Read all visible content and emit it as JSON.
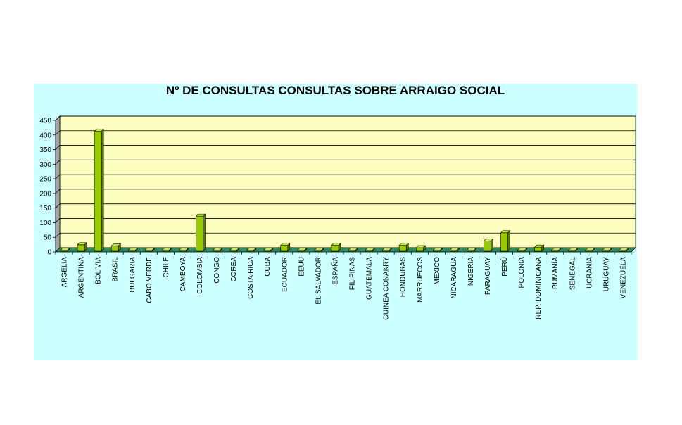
{
  "chart_data": {
    "type": "bar",
    "title": "Nº DE CONSULTAS CONSULTAS SOBRE ARRAIGO SOCIAL",
    "xlabel": "",
    "ylabel": "",
    "ylim": [
      0,
      450
    ],
    "yticks": [
      "0",
      "50",
      "100",
      "150",
      "200",
      "250",
      "300",
      "350",
      "400",
      "450"
    ],
    "grid": true,
    "legend": "none",
    "colors": {
      "background": "#ccffff",
      "plot_back": "#ffffc0",
      "plot_side": "#a6a6a6",
      "floor": "#2e8b57",
      "bar_front": "#99cc00",
      "bar_top": "#c8e64c",
      "bar_side": "#5c7a00"
    },
    "categories": [
      "ARGELIA",
      "ARGENTINA",
      "BOLIVIA",
      "BRASIL",
      "BULGARIA",
      "CABO VERDE",
      "CHILE",
      "CAMBOYA",
      "COLOMBIA",
      "CONGO",
      "COREA",
      "COSTA RICA",
      "CUBA",
      "ECUADOR",
      "EEUU",
      "EL SALVADOR",
      "ESPAÑA",
      "FILIPINAS",
      "GUATEMALA",
      "GUINEA CONAKRY",
      "HONDURAS",
      "MARRUECOS",
      "MEXICO",
      "NICARAGUA",
      "NIGERIA",
      "PARAGUAY",
      "PERÚ",
      "POLONIA",
      "REP. DOMINICANA",
      "RUMANÍA",
      "SENEGAL",
      "UCRANIA",
      "URUGUAY",
      "VENEZUELA"
    ],
    "values": [
      1,
      22,
      410,
      18,
      1,
      4,
      3,
      1,
      120,
      3,
      1,
      1,
      4,
      20,
      1,
      1,
      20,
      1,
      2,
      1,
      20,
      12,
      1,
      4,
      1,
      35,
      63,
      1,
      14,
      1,
      1,
      1,
      1,
      4
    ]
  }
}
